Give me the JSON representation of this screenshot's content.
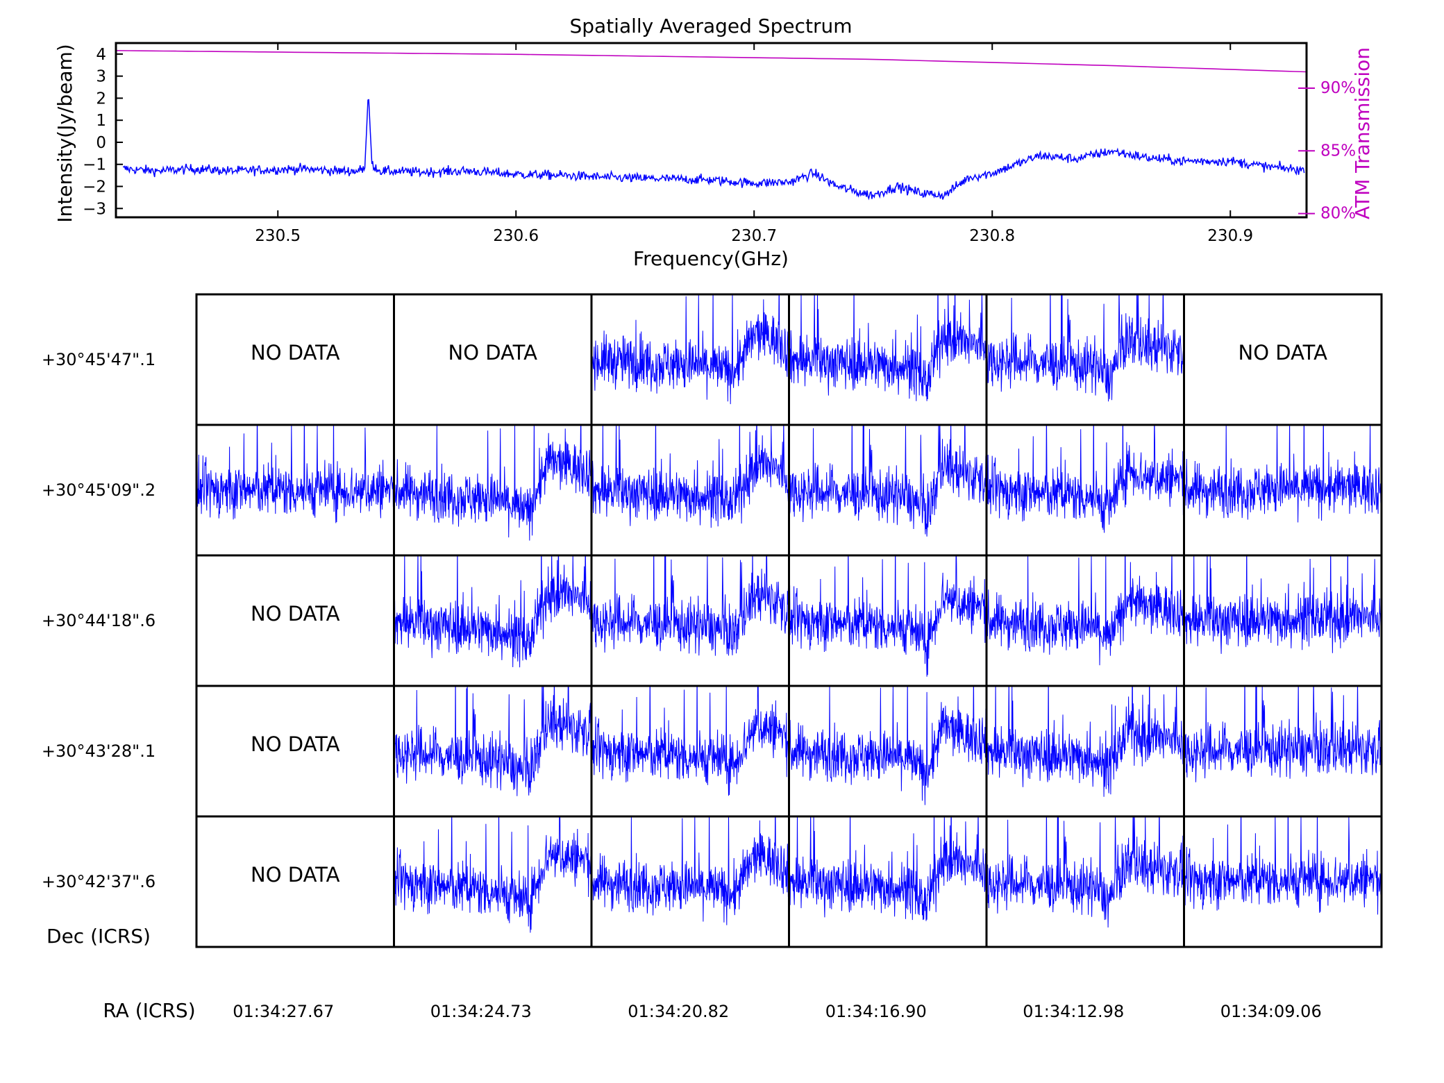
{
  "chart_data": [
    {
      "type": "line",
      "title": "Spatially Averaged Spectrum",
      "xlabel": "Frequency(GHz)",
      "ylabel": "Intensity(Jy/beam)",
      "y2label": "ATM Transmission",
      "xlim": [
        230.432,
        230.932
      ],
      "ylim": [
        -3.4,
        4.5
      ],
      "y2lim": [
        79.7,
        93.6
      ],
      "xticks": [
        230.5,
        230.6,
        230.7,
        230.8,
        230.9
      ],
      "xtick_labels": [
        "230.5",
        "230.6",
        "230.7",
        "230.8",
        "230.9"
      ],
      "yticks": [
        -3,
        -2,
        -1,
        0,
        1,
        2,
        3,
        4
      ],
      "ytick_labels": [
        "−3",
        "−2",
        "−1",
        "0",
        "1",
        "2",
        "3",
        "4"
      ],
      "y2ticks": [
        80,
        85,
        90
      ],
      "y2tick_labels": [
        "80%",
        "85%",
        "90%"
      ],
      "series": [
        {
          "color": "#0000ff",
          "x": [
            230.435,
            230.45,
            230.465,
            230.48,
            230.495,
            230.51,
            230.525,
            230.533,
            230.5365,
            230.538,
            230.5395,
            230.543,
            230.56,
            230.58,
            230.6,
            230.62,
            230.64,
            230.66,
            230.68,
            230.7,
            230.715,
            230.725,
            230.735,
            230.745,
            230.75,
            230.76,
            230.77,
            230.78,
            230.79,
            230.8,
            230.81,
            230.82,
            230.835,
            230.85,
            230.865,
            230.88,
            230.9,
            230.915,
            230.93
          ],
          "y": [
            -1.2,
            -1.3,
            -1.2,
            -1.3,
            -1.25,
            -1.2,
            -1.3,
            -1.3,
            -1.2,
            2.3,
            -1.0,
            -1.3,
            -1.35,
            -1.3,
            -1.45,
            -1.5,
            -1.6,
            -1.65,
            -1.7,
            -1.85,
            -1.8,
            -1.4,
            -2.0,
            -2.3,
            -2.4,
            -2.0,
            -2.3,
            -2.4,
            -1.6,
            -1.4,
            -1.0,
            -0.6,
            -0.75,
            -0.4,
            -0.7,
            -0.85,
            -0.85,
            -1.1,
            -1.25
          ]
        },
        {
          "color": "#bf00bf",
          "axis": "right",
          "x": [
            230.432,
            230.6,
            230.75,
            230.85,
            230.932
          ],
          "y": [
            93.0,
            92.7,
            92.3,
            91.8,
            91.3
          ]
        }
      ]
    },
    {
      "type": "line",
      "grid_rows": [
        "+30°45'47\".1",
        "+30°45'09\".2",
        "+30°44'18\".6",
        "+30°43'28\".1",
        "+30°42'37\".6"
      ],
      "grid_cols": [
        "01:34:27.67",
        "01:34:24.73",
        "01:34:20.82",
        "01:34:16.90",
        "01:34:12.98",
        "01:34:09.06"
      ],
      "ylabel": "Dec (ICRS)",
      "xlabel": "RA (ICRS)",
      "no_data_label": "NO DATA",
      "series_color": "#0000ff",
      "cells": [
        [
          "no_data",
          "no_data",
          "data",
          "data",
          "data",
          "no_data"
        ],
        [
          "data",
          "data",
          "data",
          "data",
          "data",
          "data"
        ],
        [
          "no_data",
          "data",
          "data",
          "data",
          "data",
          "data"
        ],
        [
          "no_data",
          "data",
          "data",
          "data",
          "data",
          "data"
        ],
        [
          "no_data",
          "data",
          "data",
          "data",
          "data",
          "data"
        ]
      ]
    }
  ]
}
